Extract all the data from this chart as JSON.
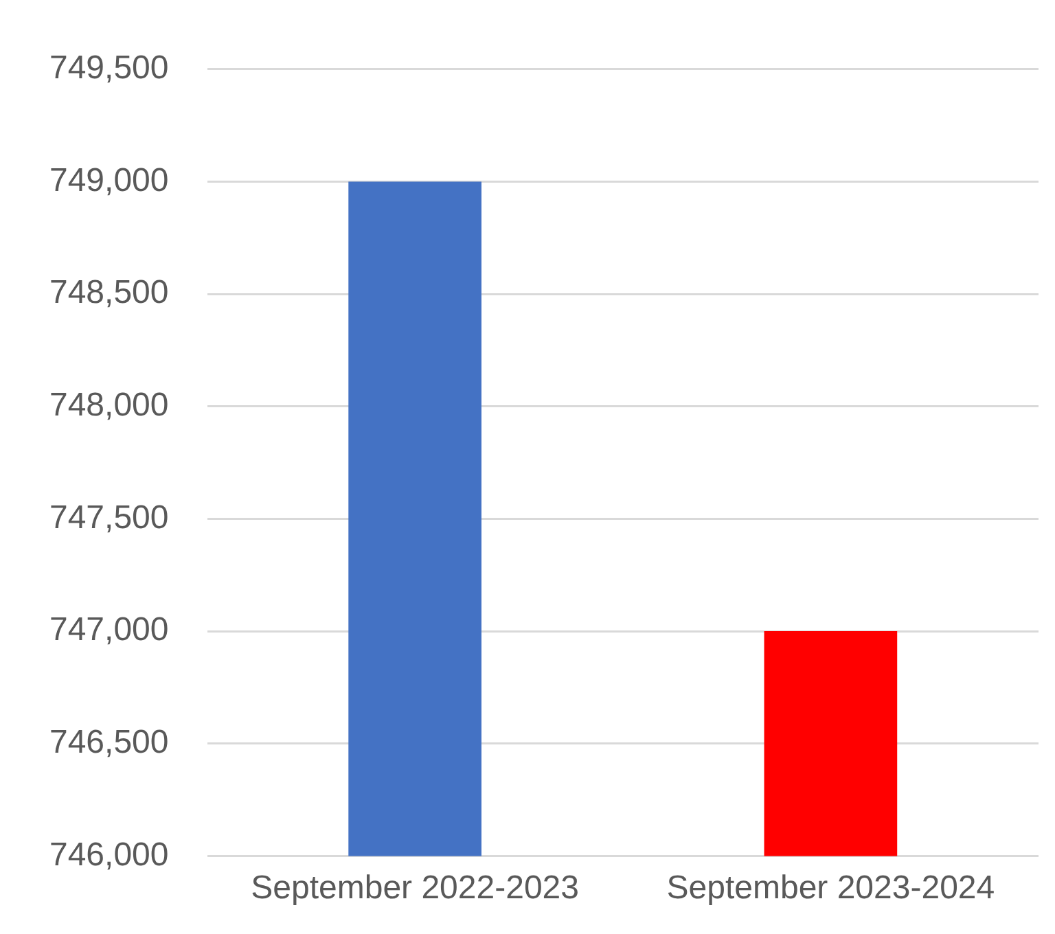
{
  "chart_data": {
    "type": "bar",
    "categories": [
      "September 2022-2023",
      "September 2023-2024"
    ],
    "values": [
      749000,
      747000
    ],
    "colors": [
      "#4472c4",
      "#ff0000"
    ],
    "ylim": [
      746000,
      749500
    ],
    "yticks": [
      {
        "value": 746000,
        "label": "746,000"
      },
      {
        "value": 746500,
        "label": "746,500"
      },
      {
        "value": 747000,
        "label": "747,000"
      },
      {
        "value": 747500,
        "label": "747,500"
      },
      {
        "value": 748000,
        "label": "748,000"
      },
      {
        "value": 748500,
        "label": "748,500"
      },
      {
        "value": 749000,
        "label": "749,000"
      },
      {
        "value": 749500,
        "label": "749,500"
      }
    ],
    "grid": "y"
  }
}
